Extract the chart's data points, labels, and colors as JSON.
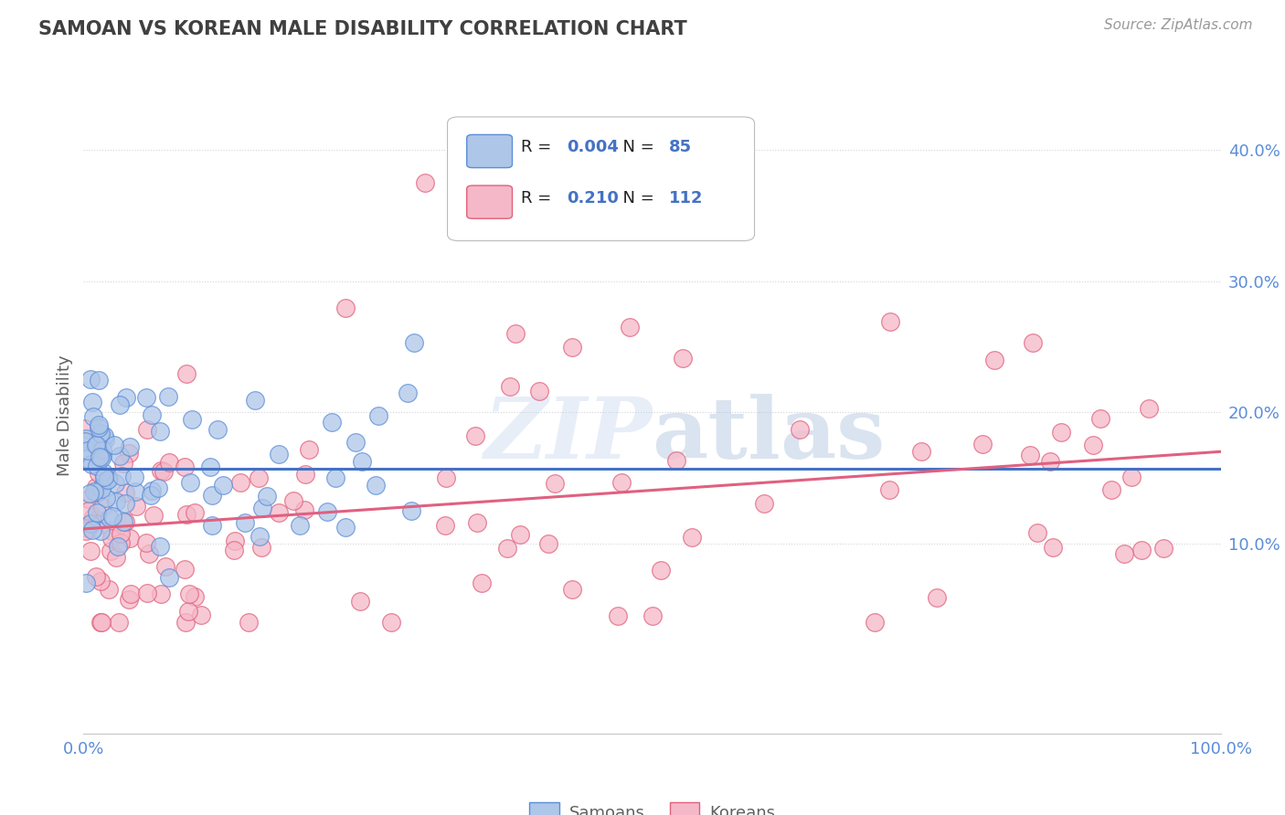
{
  "title": "SAMOAN VS KOREAN MALE DISABILITY CORRELATION CHART",
  "source": "Source: ZipAtlas.com",
  "ylabel": "Male Disability",
  "watermark": "ZIPatlas",
  "legend_samoans": "Samoans",
  "legend_koreans": "Koreans",
  "r_samoans": "0.004",
  "n_samoans": "85",
  "r_koreans": "0.210",
  "n_koreans": "112",
  "samoan_fill": "#aec6e8",
  "samoan_edge": "#5b8dd9",
  "korean_fill": "#f5b8c8",
  "korean_edge": "#e0607a",
  "samoan_line_color": "#4472c4",
  "korean_line_color": "#e06080",
  "title_color": "#404040",
  "axis_label_color": "#606060",
  "tick_color": "#5b8dd9",
  "source_color": "#999999",
  "legend_r_color": "#4472c4",
  "legend_text_color": "#222222",
  "xlim": [
    0.0,
    1.0
  ],
  "ylim": [
    -0.045,
    0.44
  ],
  "yticks": [
    0.1,
    0.2,
    0.3,
    0.4
  ],
  "xtick_labels": [
    "0.0%",
    "100.0%"
  ],
  "ytick_labels": [
    "10.0%",
    "20.0%",
    "30.0%",
    "40.0%"
  ],
  "background_color": "#ffffff",
  "grid_color": "#c8c8d0"
}
